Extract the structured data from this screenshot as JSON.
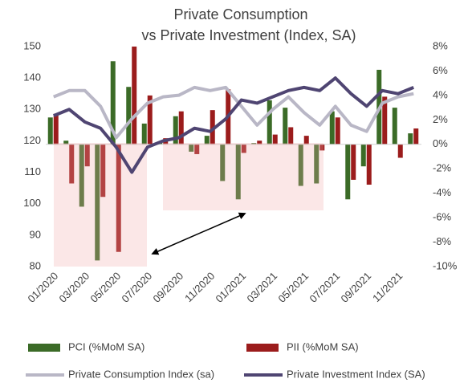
{
  "chart_data": {
    "type": "bar-line",
    "title_lines": [
      "Private Consumption",
      "vs Private Investment  (Index, SA)"
    ],
    "categories": [
      "01/2020",
      null,
      "03/2020",
      null,
      "05/2020",
      null,
      "07/2020",
      null,
      "09/2020",
      null,
      "11/2020",
      null,
      "01/2021",
      null,
      "03/2021",
      null,
      "05/2021",
      null,
      "07/2021",
      null,
      "09/2021",
      null,
      "11/2021",
      null
    ],
    "series": [
      {
        "name": "PCI (%MoM SA)",
        "type": "bar",
        "axis": "y2",
        "color": "#3b6b27",
        "values": [
          2.2,
          0.3,
          -5.1,
          -9.5,
          6.8,
          4.7,
          1.7,
          0.2,
          2.3,
          -0.6,
          0.7,
          -3.0,
          -4.5,
          0.1,
          3.6,
          3.0,
          -3.4,
          -3.2,
          2.7,
          -4.5,
          -1.8,
          6.1,
          3.0,
          0.9
        ]
      },
      {
        "name": "PII (%MoM SA)",
        "type": "bar",
        "axis": "y2",
        "color": "#9b1c1c",
        "values": [
          2.5,
          -3.2,
          -1.8,
          -4.3,
          -8.8,
          8.0,
          4.0,
          0.5,
          2.7,
          -0.8,
          2.8,
          4.5,
          -0.7,
          0.3,
          0.8,
          1.4,
          0.7,
          -0.5,
          2.2,
          -2.9,
          -3.3,
          3.9,
          -1.1,
          1.3
        ]
      },
      {
        "name": "Private Consumption Index (sa)",
        "type": "line",
        "axis": "y",
        "color": "#b9b7c6",
        "values": [
          134,
          136,
          136,
          131,
          121,
          127,
          132,
          134,
          134.5,
          137,
          136,
          137,
          131,
          125,
          130,
          134,
          129,
          125,
          131,
          125,
          123,
          132,
          134,
          135
        ]
      },
      {
        "name": "Private Investment Index  (SA)",
        "type": "line",
        "axis": "y",
        "color": "#4f4572",
        "values": [
          128,
          130,
          126,
          124,
          118,
          110,
          118,
          120,
          121,
          124,
          123,
          127,
          133,
          132,
          134,
          136,
          137,
          136,
          140,
          135,
          131,
          136,
          135,
          137
        ]
      }
    ],
    "ylim": [
      80,
      150
    ],
    "yticks": [
      80,
      90,
      100,
      110,
      120,
      130,
      140,
      150
    ],
    "y2lim": [
      -10,
      8
    ],
    "y2ticks": [
      {
        "value": -10,
        "label": "-10%"
      },
      {
        "value": -8,
        "label": "-8%"
      },
      {
        "value": -6,
        "label": "-6%"
      },
      {
        "value": -4,
        "label": "-4%"
      },
      {
        "value": -2,
        "label": "-2%"
      },
      {
        "value": 0,
        "label": "0%"
      },
      {
        "value": 2,
        "label": "2%"
      },
      {
        "value": 4,
        "label": "4%"
      },
      {
        "value": 6,
        "label": "6%"
      },
      {
        "value": 8,
        "label": "8%"
      }
    ],
    "legend": "bottom"
  }
}
